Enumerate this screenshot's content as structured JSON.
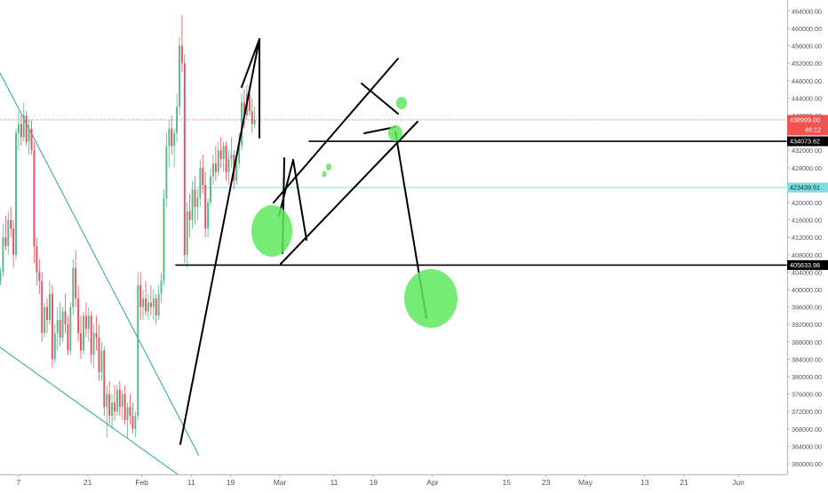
{
  "chart_data": {
    "type": "candlestick",
    "title": "",
    "xlabel": "",
    "ylabel": "",
    "ylim": [
      360000,
      466000
    ],
    "grid": false,
    "x_ticks": [
      "7",
      "21",
      "Feb",
      "11",
      "19",
      "Mar",
      "11",
      "19",
      "Apr",
      "15",
      "23",
      "May",
      "13",
      "21",
      "Jun"
    ],
    "x_tick_days": [
      7,
      21,
      32,
      42,
      50,
      60,
      71,
      79,
      91,
      106,
      114,
      122,
      134,
      142,
      153
    ],
    "y_ticks": [
      360000,
      364000,
      368000,
      372000,
      376000,
      380000,
      384000,
      388000,
      392000,
      396000,
      400000,
      404000,
      408000,
      412000,
      416000,
      420000,
      424000,
      428000,
      432000,
      436000,
      440000,
      444000,
      448000,
      452000,
      456000,
      460000,
      464000
    ],
    "y_tick_labels": [
      "360000.00",
      "364000.00",
      "368000.00",
      "372000.00",
      "376000.00",
      "380000.00",
      "384000.00",
      "388000.00",
      "392000.00",
      "396000.00",
      "400000.00",
      "404000.00",
      "408000.00",
      "412000.00",
      "416000.00",
      "420000.00",
      "424000.00",
      "428000.00",
      "432000.00",
      "436000.00",
      "440000.00",
      "444000.00",
      "448000.00",
      "452000.00",
      "456000.00",
      "460000.00",
      "464000.00"
    ],
    "colors": {
      "up": "#53b987",
      "down": "#eb4d5c",
      "drawing": "#000000",
      "trendline": "#26a69a",
      "hline": "#7fdde0",
      "marker": "#5ee85e",
      "price_label": "#ef5350"
    },
    "candles_ohlc": [
      [
        402000,
        405000,
        401000,
        404000
      ],
      [
        404000,
        415000,
        403000,
        412000
      ],
      [
        412000,
        417000,
        409000,
        410000
      ],
      [
        410000,
        418000,
        408000,
        416000
      ],
      [
        416000,
        419000,
        412000,
        414000
      ],
      [
        414000,
        416000,
        405000,
        408000
      ],
      [
        408000,
        437000,
        407000,
        436000
      ],
      [
        436000,
        441000,
        432000,
        438000
      ],
      [
        438000,
        440000,
        433000,
        435000
      ],
      [
        435000,
        443000,
        434000,
        440000
      ],
      [
        440000,
        441000,
        433000,
        434000
      ],
      [
        434000,
        439000,
        431000,
        437000
      ],
      [
        437000,
        439000,
        431000,
        432000
      ],
      [
        432000,
        434000,
        406000,
        410000
      ],
      [
        410000,
        412000,
        401000,
        404000
      ],
      [
        404000,
        407000,
        399000,
        402000
      ],
      [
        402000,
        404000,
        388000,
        390000
      ],
      [
        390000,
        397000,
        389000,
        396000
      ],
      [
        396000,
        398000,
        390000,
        393000
      ],
      [
        393000,
        402000,
        392000,
        399000
      ],
      [
        399000,
        401000,
        382000,
        384000
      ],
      [
        384000,
        392000,
        383000,
        390000
      ],
      [
        390000,
        396000,
        386000,
        393000
      ],
      [
        393000,
        397000,
        387000,
        389000
      ],
      [
        389000,
        396000,
        388000,
        395000
      ],
      [
        395000,
        399000,
        390000,
        392000
      ],
      [
        392000,
        394000,
        385000,
        386000
      ],
      [
        386000,
        397000,
        385000,
        396000
      ],
      [
        396000,
        407000,
        394000,
        405000
      ],
      [
        405000,
        409000,
        396000,
        398000
      ],
      [
        398000,
        401000,
        388000,
        390000
      ],
      [
        390000,
        394000,
        384000,
        386000
      ],
      [
        386000,
        395000,
        385000,
        394000
      ],
      [
        394000,
        397000,
        389000,
        391000
      ],
      [
        391000,
        396000,
        388000,
        394000
      ],
      [
        394000,
        395000,
        383000,
        385000
      ],
      [
        385000,
        392000,
        382000,
        390000
      ],
      [
        390000,
        394000,
        386000,
        389000
      ],
      [
        389000,
        392000,
        379000,
        381000
      ],
      [
        381000,
        388000,
        379000,
        386000
      ],
      [
        386000,
        387000,
        371000,
        373000
      ],
      [
        373000,
        378000,
        366000,
        376000
      ],
      [
        376000,
        379000,
        369000,
        371000
      ],
      [
        371000,
        376000,
        368000,
        374000
      ],
      [
        374000,
        378000,
        370000,
        372000
      ],
      [
        372000,
        378000,
        371000,
        377000
      ],
      [
        377000,
        379000,
        371000,
        373000
      ],
      [
        373000,
        377000,
        370000,
        376000
      ],
      [
        376000,
        378000,
        369000,
        370000
      ],
      [
        370000,
        374000,
        366000,
        373000
      ],
      [
        373000,
        376000,
        369000,
        371000
      ],
      [
        371000,
        374000,
        367000,
        368000
      ],
      [
        368000,
        372000,
        366000,
        371000
      ],
      [
        371000,
        404000,
        370000,
        401000
      ],
      [
        401000,
        404000,
        393000,
        396000
      ],
      [
        396000,
        400000,
        393000,
        398000
      ],
      [
        398000,
        402000,
        394000,
        395000
      ],
      [
        395000,
        399000,
        393000,
        397000
      ],
      [
        397000,
        401000,
        394000,
        396000
      ],
      [
        396000,
        400000,
        393000,
        398000
      ],
      [
        398000,
        399000,
        392000,
        394000
      ],
      [
        394000,
        401000,
        393000,
        399000
      ],
      [
        399000,
        404000,
        397000,
        402000
      ],
      [
        402000,
        423000,
        401000,
        421000
      ],
      [
        421000,
        436000,
        419000,
        433000
      ],
      [
        433000,
        439000,
        428000,
        437000
      ],
      [
        437000,
        440000,
        431000,
        433000
      ],
      [
        433000,
        437000,
        428000,
        436000
      ],
      [
        436000,
        445000,
        434000,
        442000
      ],
      [
        442000,
        458000,
        440000,
        456000
      ],
      [
        456000,
        463000,
        450000,
        452000
      ],
      [
        452000,
        454000,
        406000,
        408000
      ],
      [
        408000,
        420000,
        405000,
        418000
      ],
      [
        418000,
        422000,
        412000,
        416000
      ],
      [
        416000,
        425000,
        414000,
        423000
      ],
      [
        423000,
        426000,
        415000,
        419000
      ],
      [
        419000,
        423000,
        416000,
        421000
      ],
      [
        421000,
        430000,
        419000,
        428000
      ],
      [
        428000,
        431000,
        422000,
        424000
      ],
      [
        424000,
        427000,
        412000,
        414000
      ],
      [
        414000,
        421000,
        412000,
        420000
      ],
      [
        420000,
        428000,
        419000,
        426000
      ],
      [
        426000,
        431000,
        424000,
        429000
      ],
      [
        429000,
        433000,
        425000,
        427000
      ],
      [
        427000,
        434000,
        426000,
        432000
      ],
      [
        432000,
        435000,
        428000,
        430000
      ],
      [
        430000,
        434000,
        427000,
        433000
      ],
      [
        433000,
        434000,
        425000,
        427000
      ],
      [
        427000,
        432000,
        424000,
        430000
      ],
      [
        430000,
        435000,
        428000,
        431000
      ],
      [
        431000,
        432000,
        423000,
        425000
      ],
      [
        425000,
        431000,
        424000,
        429000
      ],
      [
        429000,
        436000,
        428000,
        433000
      ],
      [
        433000,
        445000,
        432000,
        443000
      ],
      [
        443000,
        446000,
        437000,
        440000
      ],
      [
        440000,
        447000,
        439000,
        445000
      ],
      [
        445000,
        447000,
        440000,
        441000
      ],
      [
        441000,
        444000,
        436000,
        438000
      ],
      [
        438000,
        442000,
        437000,
        439000
      ]
    ],
    "price_labels": [
      {
        "value": 438999,
        "text": "438999.00",
        "sub": "46:12",
        "kind": "current"
      },
      {
        "value": 434073.62,
        "text": "434073.62",
        "kind": "drawing"
      },
      {
        "value": 423439.51,
        "text": "423439.51",
        "kind": "hline"
      },
      {
        "value": 405633.98,
        "text": "405633.98",
        "kind": "drawing"
      }
    ]
  }
}
